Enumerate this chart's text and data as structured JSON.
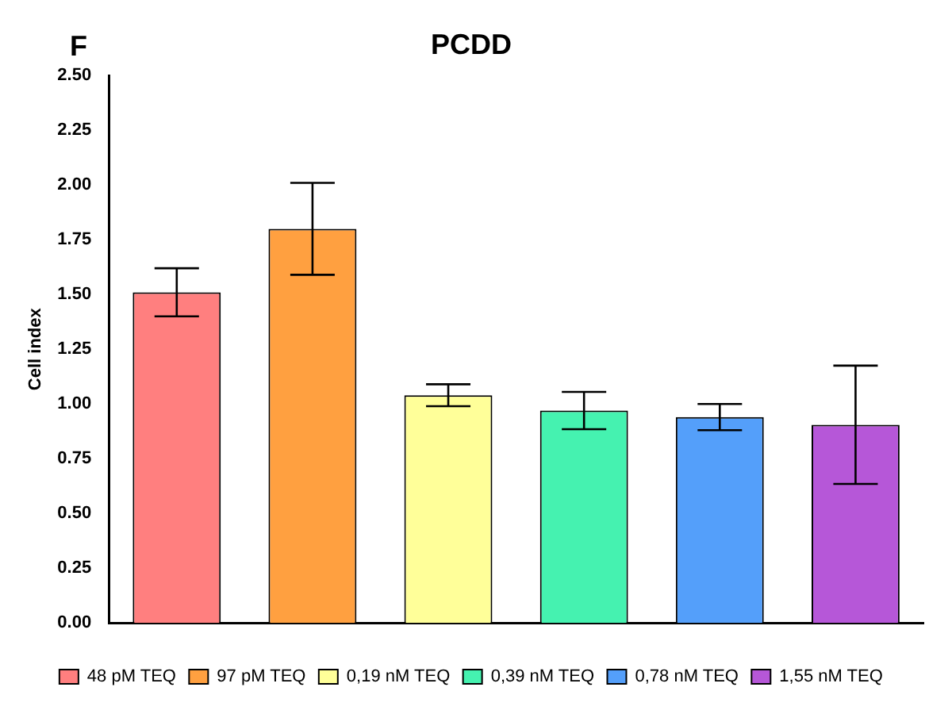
{
  "chart_data": {
    "type": "bar",
    "title": "PCDD",
    "ylabel": "Cell index",
    "annotations": [
      "F"
    ],
    "categories": [
      null,
      null,
      null,
      null,
      null,
      null
    ],
    "series": [
      {
        "name": "48 pM TEQ",
        "color": "#ff7f7f",
        "values": [
          1.51,
          null,
          null,
          null,
          null,
          null
        ],
        "errors": [
          0.11,
          null,
          null,
          null,
          null,
          null
        ]
      },
      {
        "name": "97 pM TEQ",
        "color": "#ffa040",
        "values": [
          null,
          1.8,
          null,
          null,
          null,
          null
        ],
        "errors": [
          null,
          0.21,
          null,
          null,
          null,
          null
        ]
      },
      {
        "name": "0,19 nM TEQ",
        "color": "#ffff99",
        "values": [
          null,
          null,
          1.04,
          null,
          null,
          null
        ],
        "errors": [
          null,
          null,
          0.05,
          null,
          null,
          null
        ]
      },
      {
        "name": "0,39 nM TEQ",
        "color": "#45f2b0",
        "values": [
          null,
          null,
          null,
          0.97,
          null,
          null
        ],
        "errors": [
          null,
          null,
          null,
          0.085,
          null,
          null
        ]
      },
      {
        "name": "0,78 nM TEQ",
        "color": "#549ffa",
        "values": [
          null,
          null,
          null,
          null,
          0.94,
          null
        ],
        "errors": [
          null,
          null,
          null,
          null,
          0.06,
          null
        ]
      },
      {
        "name": "1,55 nM TEQ",
        "color": "#b657d8",
        "values": [
          null,
          null,
          null,
          null,
          null,
          0.905
        ],
        "errors": [
          null,
          null,
          null,
          null,
          null,
          0.27
        ]
      }
    ],
    "ylim": [
      0,
      2.5
    ],
    "yticks": [
      {
        "value": 0,
        "label": "0.00"
      },
      {
        "value": 0.25,
        "label": "0.25"
      },
      {
        "value": 0.5,
        "label": "0.50"
      },
      {
        "value": 0.75,
        "label": "0.75"
      },
      {
        "value": 1,
        "label": "1.00"
      },
      {
        "value": 1.25,
        "label": "1.25"
      },
      {
        "value": 1.5,
        "label": "1.50"
      },
      {
        "value": 1.75,
        "label": "1.75"
      },
      {
        "value": 2,
        "label": "2.00"
      },
      {
        "value": 2.25,
        "label": "2.25"
      },
      {
        "value": 2.5,
        "label": "2.50"
      }
    ],
    "grid": false,
    "legend": "bottom"
  }
}
